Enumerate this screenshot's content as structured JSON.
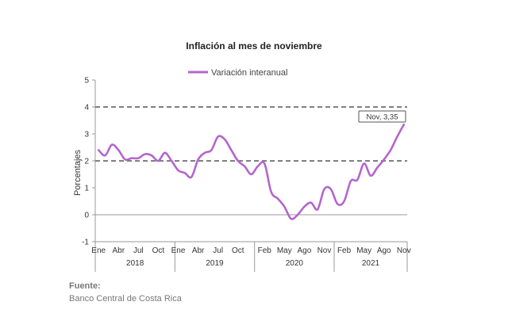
{
  "chart_data": {
    "type": "line",
    "title": "Inflación al mes de noviembre",
    "ylabel": "Porcentajes",
    "ylim": [
      -1,
      5
    ],
    "yticks": [
      -1,
      0,
      1,
      2,
      3,
      4,
      5
    ],
    "reference_lines": [
      4,
      2
    ],
    "legend": {
      "placement": "top",
      "entries": [
        "Variación interanual"
      ]
    },
    "line_color": "#b366cc",
    "ref_line_color": "#7f7f7f",
    "x_tick_labels": [
      {
        "i": 0,
        "label": "Ene"
      },
      {
        "i": 3,
        "label": "Abr"
      },
      {
        "i": 6,
        "label": "Jul"
      },
      {
        "i": 9,
        "label": "Oct"
      },
      {
        "i": 12,
        "label": "Ene"
      },
      {
        "i": 15,
        "label": "Abr"
      },
      {
        "i": 18,
        "label": "Jul"
      },
      {
        "i": 21,
        "label": "Oct"
      },
      {
        "i": 25,
        "label": "Feb"
      },
      {
        "i": 28,
        "label": "May"
      },
      {
        "i": 31,
        "label": "Ago"
      },
      {
        "i": 34,
        "label": "Nov"
      },
      {
        "i": 37,
        "label": "Feb"
      },
      {
        "i": 40,
        "label": "May"
      },
      {
        "i": 43,
        "label": "Ago"
      },
      {
        "i": 46,
        "label": "Nov"
      }
    ],
    "years": [
      {
        "label": "2018",
        "start": 0,
        "end": 11
      },
      {
        "label": "2019",
        "start": 12,
        "end": 23
      },
      {
        "label": "2020",
        "start": 24,
        "end": 35
      },
      {
        "label": "2021",
        "start": 36,
        "end": 46
      }
    ],
    "series": [
      {
        "name": "Variación interanual",
        "x": [
          "2018-01",
          "2018-02",
          "2018-03",
          "2018-04",
          "2018-05",
          "2018-06",
          "2018-07",
          "2018-08",
          "2018-09",
          "2018-10",
          "2018-11",
          "2018-12",
          "2019-01",
          "2019-02",
          "2019-03",
          "2019-04",
          "2019-05",
          "2019-06",
          "2019-07",
          "2019-08",
          "2019-09",
          "2019-10",
          "2019-11",
          "2019-12",
          "2020-01",
          "2020-02",
          "2020-03",
          "2020-04",
          "2020-05",
          "2020-06",
          "2020-07",
          "2020-08",
          "2020-09",
          "2020-10",
          "2020-11",
          "2020-12",
          "2021-01",
          "2021-02",
          "2021-03",
          "2021-04",
          "2021-05",
          "2021-06",
          "2021-07",
          "2021-08",
          "2021-09",
          "2021-10",
          "2021-11"
        ],
        "values": [
          2.4,
          2.2,
          2.6,
          2.4,
          2.05,
          2.1,
          2.1,
          2.25,
          2.2,
          2.0,
          2.3,
          2.0,
          1.65,
          1.55,
          1.4,
          2.05,
          2.3,
          2.4,
          2.9,
          2.8,
          2.4,
          2.0,
          1.8,
          1.5,
          1.8,
          1.9,
          0.85,
          0.6,
          0.3,
          -0.15,
          0.0,
          0.3,
          0.45,
          0.2,
          0.95,
          0.95,
          0.4,
          0.5,
          1.25,
          1.3,
          1.9,
          1.45,
          1.75,
          2.05,
          2.4,
          2.9,
          3.35
        ]
      }
    ],
    "annotation": {
      "label": "Nov, 3,35",
      "index": 46,
      "value": 3.35
    }
  },
  "source": {
    "title": "Fuente:",
    "text": "Banco Central de Costa Rica"
  }
}
